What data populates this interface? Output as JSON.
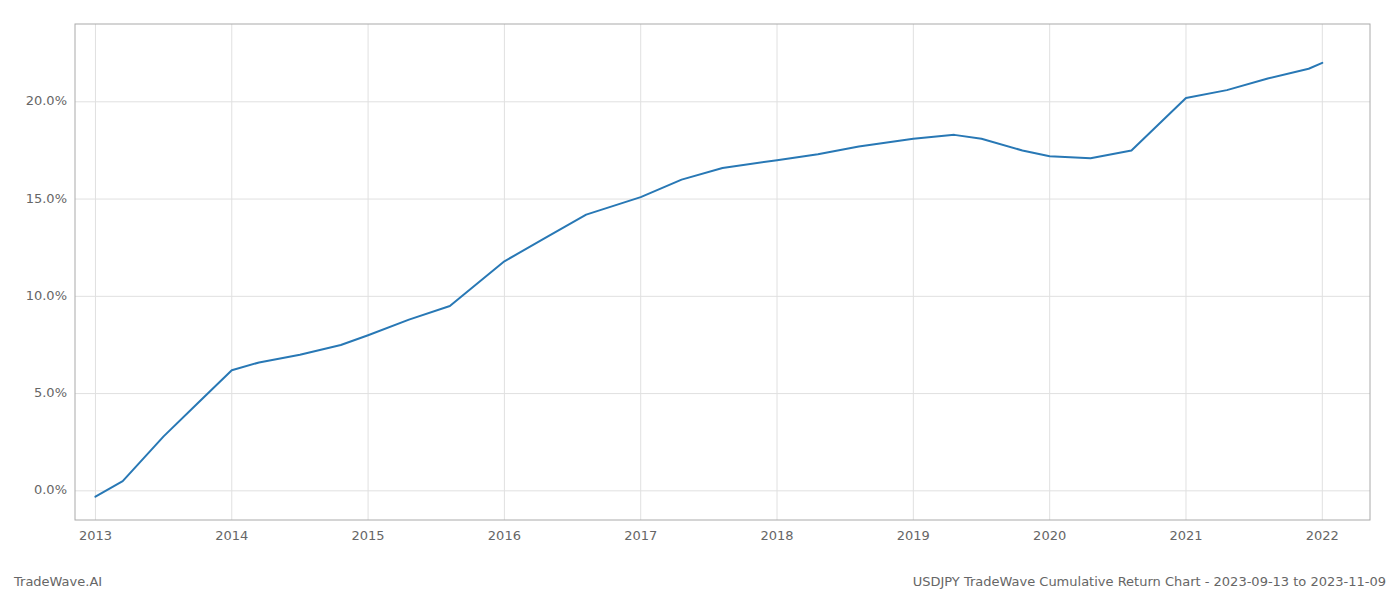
{
  "chart_data": {
    "type": "line",
    "title": "USDJPY TradeWave Cumulative Return Chart - 2023-09-13 to 2023-11-09",
    "annotations": [
      "TradeWave.AI"
    ],
    "x": [
      2013.0,
      2013.2,
      2013.5,
      2013.75,
      2014.0,
      2014.2,
      2014.5,
      2014.8,
      2015.0,
      2015.3,
      2015.6,
      2016.0,
      2016.3,
      2016.6,
      2017.0,
      2017.3,
      2017.6,
      2018.0,
      2018.3,
      2018.6,
      2019.0,
      2019.3,
      2019.5,
      2019.8,
      2020.0,
      2020.3,
      2020.6,
      2021.0,
      2021.3,
      2021.6,
      2021.9,
      2022.0
    ],
    "values": [
      -0.3,
      0.5,
      2.8,
      4.5,
      6.2,
      6.6,
      7.0,
      7.5,
      8.0,
      8.8,
      9.5,
      11.8,
      13.0,
      14.2,
      15.1,
      16.0,
      16.6,
      17.0,
      17.3,
      17.7,
      18.1,
      18.3,
      18.1,
      17.5,
      17.2,
      17.1,
      17.5,
      20.2,
      20.6,
      21.2,
      21.7,
      22.0
    ],
    "color": "#2878b5",
    "xlim": [
      2012.85,
      2022.35
    ],
    "ylim": [
      -1.5,
      24.0
    ],
    "xticks": [
      2013,
      2014,
      2015,
      2016,
      2017,
      2018,
      2019,
      2020,
      2021,
      2022
    ],
    "yticks": [
      {
        "value": 0.0,
        "label": "0.0%"
      },
      {
        "value": 5.0,
        "label": "5.0%"
      },
      {
        "value": 10.0,
        "label": "10.0%"
      },
      {
        "value": 15.0,
        "label": "15.0%"
      },
      {
        "value": 20.0,
        "label": "20.0%"
      }
    ],
    "grid": true
  }
}
